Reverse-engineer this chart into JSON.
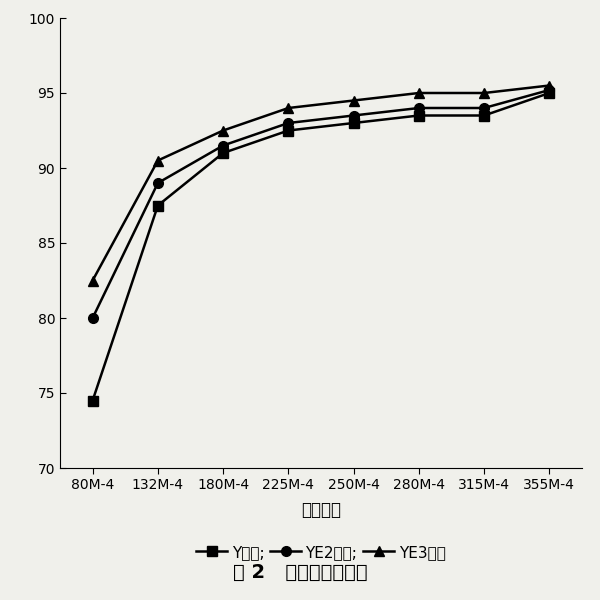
{
  "categories": [
    "80M-4",
    "132M-4",
    "180M-4",
    "225M-4",
    "250M-4",
    "280M-4",
    "315M-4",
    "355M-4"
  ],
  "Y_series": [
    74.5,
    87.5,
    91.0,
    92.5,
    93.0,
    93.5,
    93.5,
    95.0
  ],
  "YE2_series": [
    80.0,
    89.0,
    91.5,
    93.0,
    93.5,
    94.0,
    94.0,
    95.2
  ],
  "YE3_series": [
    82.5,
    90.5,
    92.5,
    94.0,
    94.5,
    95.0,
    95.0,
    95.5
  ],
  "ylim": [
    70,
    100
  ],
  "yticks": [
    70,
    75,
    80,
    85,
    90,
    95,
    100
  ],
  "xlabel": "电机型号",
  "title": "图 2   电机效率对比图",
  "legend_Y": "Y系列",
  "legend_YE2": "YE2系列",
  "legend_YE3": "YE3系列",
  "line_color": "#000000",
  "bg_color": "#f0f0eb",
  "marker_Y": "s",
  "marker_YE2": "o",
  "marker_YE3": "^",
  "markersize": 7,
  "linewidth": 1.8,
  "xlabel_fontsize": 12,
  "tick_fontsize": 10,
  "legend_fontsize": 11,
  "title_fontsize": 14
}
